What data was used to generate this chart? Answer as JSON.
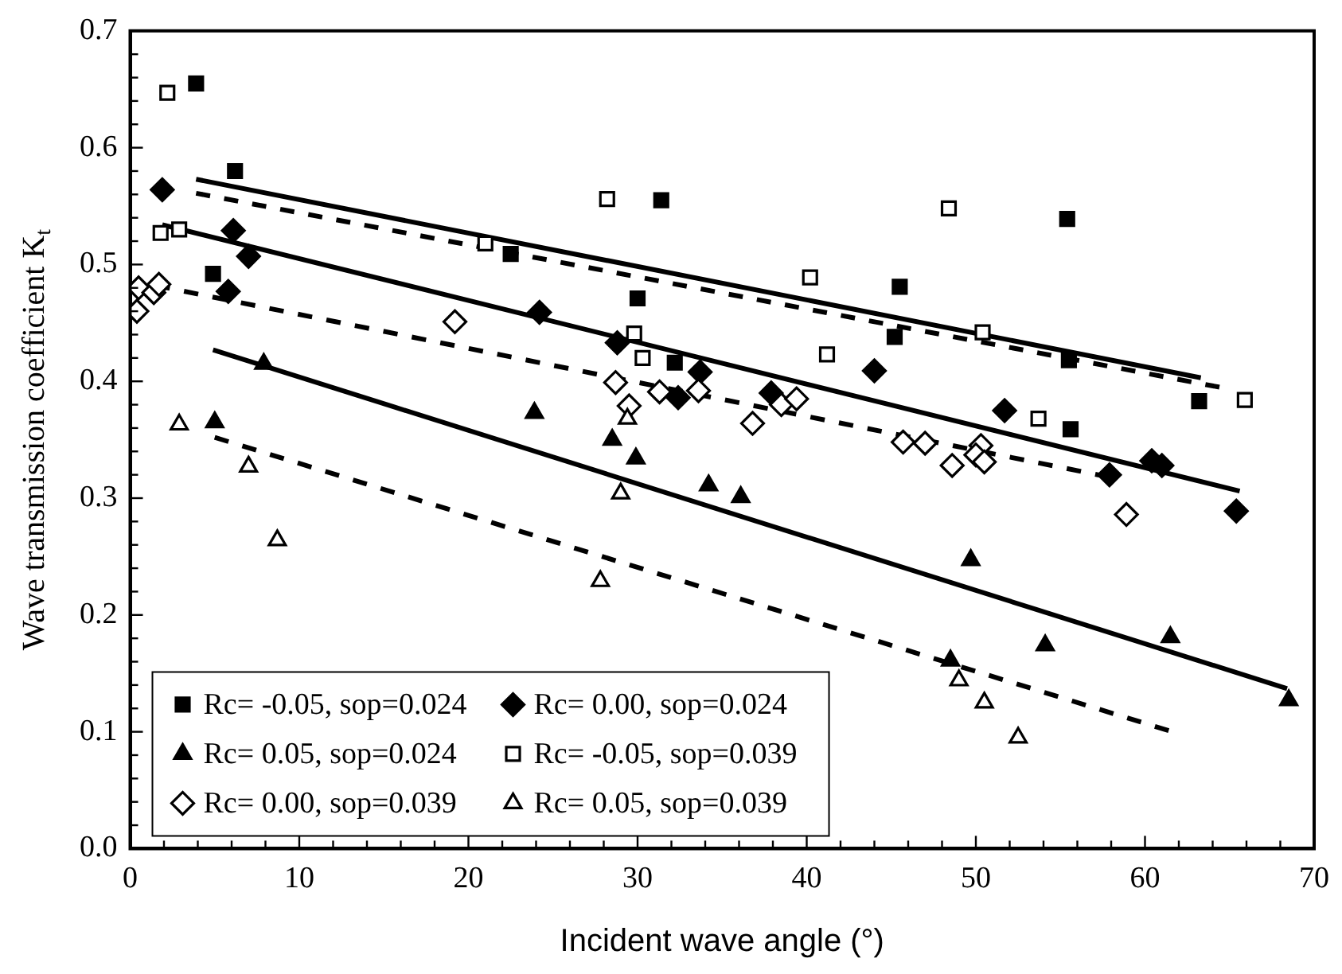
{
  "chart_data": {
    "type": "scatter",
    "xlabel": "Incident wave angle (°)",
    "ylabel": "Wave transmission coefficient K$_{t}$",
    "xlim": [
      0,
      70
    ],
    "ylim": [
      0,
      0.7
    ],
    "xticks": [
      0,
      {
        "value": 2,
        "label": null
      },
      {
        "value": 4,
        "label": null
      },
      {
        "value": 6,
        "label": null
      },
      {
        "value": 8,
        "label": null
      },
      10,
      {
        "value": 12,
        "label": null
      },
      {
        "value": 14,
        "label": null
      },
      {
        "value": 16,
        "label": null
      },
      {
        "value": 18,
        "label": null
      },
      20,
      {
        "value": 22,
        "label": null
      },
      {
        "value": 24,
        "label": null
      },
      {
        "value": 26,
        "label": null
      },
      {
        "value": 28,
        "label": null
      },
      30,
      {
        "value": 32,
        "label": null
      },
      {
        "value": 34,
        "label": null
      },
      {
        "value": 36,
        "label": null
      },
      {
        "value": 38,
        "label": null
      },
      40,
      {
        "value": 42,
        "label": null
      },
      {
        "value": 44,
        "label": null
      },
      {
        "value": 46,
        "label": null
      },
      {
        "value": 48,
        "label": null
      },
      50,
      {
        "value": 52,
        "label": null
      },
      {
        "value": 54,
        "label": null
      },
      {
        "value": 56,
        "label": null
      },
      {
        "value": 58,
        "label": null
      },
      60,
      {
        "value": 62,
        "label": null
      },
      {
        "value": 64,
        "label": null
      },
      {
        "value": 66,
        "label": null
      },
      {
        "value": 68,
        "label": null
      },
      70
    ],
    "yticks": [
      {
        "value": 0,
        "label": "0.0"
      },
      {
        "value": 0.02,
        "label": null
      },
      {
        "value": 0.04,
        "label": null
      },
      {
        "value": 0.06,
        "label": null
      },
      {
        "value": 0.08,
        "label": null
      },
      {
        "value": 0.1,
        "label": "0.1"
      },
      {
        "value": 0.12,
        "label": null
      },
      {
        "value": 0.14,
        "label": null
      },
      {
        "value": 0.16,
        "label": null
      },
      {
        "value": 0.18,
        "label": null
      },
      {
        "value": 0.2,
        "label": "0.2"
      },
      {
        "value": 0.22,
        "label": null
      },
      {
        "value": 0.24,
        "label": null
      },
      {
        "value": 0.26,
        "label": null
      },
      {
        "value": 0.28,
        "label": null
      },
      {
        "value": 0.3,
        "label": "0.3"
      },
      {
        "value": 0.32,
        "label": null
      },
      {
        "value": 0.34,
        "label": null
      },
      {
        "value": 0.36,
        "label": null
      },
      {
        "value": 0.38,
        "label": null
      },
      {
        "value": 0.4,
        "label": "0.4"
      },
      {
        "value": 0.42,
        "label": null
      },
      {
        "value": 0.44,
        "label": null
      },
      {
        "value": 0.46,
        "label": null
      },
      {
        "value": 0.48,
        "label": null
      },
      {
        "value": 0.5,
        "label": "0.5"
      },
      {
        "value": 0.52,
        "label": null
      },
      {
        "value": 0.54,
        "label": null
      },
      {
        "value": 0.56,
        "label": null
      },
      {
        "value": 0.58,
        "label": null
      },
      {
        "value": 0.6,
        "label": "0.6"
      },
      {
        "value": 0.62,
        "label": null
      },
      {
        "value": 0.64,
        "label": null
      },
      {
        "value": 0.66,
        "label": null
      },
      {
        "value": 0.68,
        "label": null
      },
      {
        "value": 0.7,
        "label": "0.7"
      }
    ],
    "grid": false,
    "legend": "bottom left",
    "series": [
      {
        "name": "Rc= -0.05, sop=0.024",
        "color": "#000000",
        "marker": "square",
        "x": [
          3.9,
          6.2,
          4.9,
          22.5,
          31.4,
          30.0,
          32.2,
          55.4,
          45.5,
          45.2,
          55.5,
          63.2,
          55.6
        ],
        "values": [
          0.655,
          0.58,
          0.492,
          0.509,
          0.555,
          0.471,
          0.416,
          0.539,
          0.481,
          0.438,
          0.418,
          0.383,
          0.359
        ]
      },
      {
        "name": "Rc= 0.00, sop=0.024",
        "color": "#000000",
        "marker": "diamond",
        "x": [
          1.9,
          6.1,
          7.0,
          5.8,
          24.2,
          28.8,
          32.4,
          33.7,
          37.9,
          44.0,
          51.7,
          60.4,
          61.0,
          57.9,
          65.4
        ],
        "values": [
          0.564,
          0.529,
          0.507,
          0.477,
          0.459,
          0.433,
          0.386,
          0.408,
          0.39,
          0.409,
          0.375,
          0.332,
          0.328,
          0.32,
          0.289
        ]
      },
      {
        "name": "Rc= 0.05, sop=0.024",
        "color": "#000000",
        "marker": "triangle",
        "x": [
          7.9,
          5.0,
          23.9,
          28.5,
          29.9,
          34.2,
          36.1,
          49.7,
          61.5,
          54.1,
          48.5,
          68.5
        ],
        "values": [
          0.415,
          0.365,
          0.373,
          0.35,
          0.334,
          0.311,
          0.301,
          0.247,
          0.181,
          0.174,
          0.161,
          0.127
        ]
      },
      {
        "name": "Rc= -0.05, sop=0.039",
        "color": "#ffffff",
        "marker": "square",
        "x": [
          2.2,
          1.8,
          2.9,
          21.0,
          28.2,
          29.8,
          30.3,
          48.4,
          40.2,
          41.2,
          50.4,
          53.7,
          65.9
        ],
        "values": [
          0.647,
          0.527,
          0.53,
          0.518,
          0.556,
          0.441,
          0.42,
          0.548,
          0.489,
          0.423,
          0.442,
          0.368,
          0.384
        ]
      },
      {
        "name": "Rc= 0.00, sop=0.039",
        "color": "#ffffff",
        "marker": "diamond",
        "x": [
          0.4,
          0.5,
          1.4,
          1.7,
          19.2,
          28.7,
          29.5,
          31.3,
          33.6,
          38.5,
          39.4,
          36.8,
          45.7,
          47.0,
          48.6,
          50.3,
          50.0,
          50.5,
          58.9
        ],
        "values": [
          0.46,
          0.48,
          0.476,
          0.483,
          0.451,
          0.399,
          0.379,
          0.391,
          0.392,
          0.38,
          0.385,
          0.364,
          0.348,
          0.347,
          0.328,
          0.345,
          0.337,
          0.331,
          0.286
        ]
      },
      {
        "name": "Rc= 0.05, sop=0.039",
        "color": "#ffffff",
        "marker": "triangle",
        "x": [
          2.9,
          7.0,
          8.7,
          27.8,
          29.0,
          29.4,
          49.0,
          50.5,
          52.5
        ],
        "values": [
          0.363,
          0.327,
          0.264,
          0.229,
          0.304,
          0.368,
          0.144,
          0.125,
          0.095
        ]
      },
      {
        "type": "line",
        "color": "#000000",
        "line_style": "solid",
        "x": [
          3.9,
          63.3
        ],
        "values": [
          0.573,
          0.403
        ]
      },
      {
        "type": "line",
        "color": "#000000",
        "line_style": "solid",
        "x": [
          1.9,
          65.6
        ],
        "values": [
          0.534,
          0.306
        ]
      },
      {
        "type": "line",
        "color": "#000000",
        "line_style": "solid",
        "x": [
          4.9,
          68.4
        ],
        "values": [
          0.427,
          0.137
        ]
      },
      {
        "type": "line",
        "color": "#000000",
        "line_style": "dashed",
        "x": [
          3.9,
          64.4
        ],
        "values": [
          0.561,
          0.395
        ]
      },
      {
        "type": "line",
        "color": "#000000",
        "line_style": "dashed",
        "x": [
          1.5,
          57.9
        ],
        "values": [
          0.482,
          0.318
        ]
      },
      {
        "type": "line",
        "color": "#000000",
        "line_style": "dashed",
        "x": [
          5.0,
          61.4
        ],
        "values": [
          0.352,
          0.101
        ]
      }
    ]
  }
}
